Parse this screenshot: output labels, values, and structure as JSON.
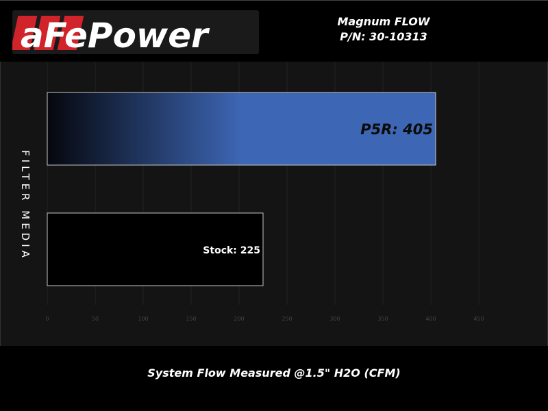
{
  "header": {
    "brand": "aFePower",
    "title_line1": "Magnum FLOW",
    "title_line2": "P/N: 30-10313"
  },
  "colors": {
    "logo_red": "#d1232a",
    "bar_blue": "#3d66b4",
    "background": "#141414"
  },
  "chart_data": {
    "type": "bar",
    "orientation": "horizontal",
    "categories": [
      "P5R",
      "Stock"
    ],
    "values": [
      405,
      225
    ],
    "data_labels": [
      "P5R: 405",
      "Stock: 225"
    ],
    "xlabel": "System Flow Measured @1.5\" H2O (CFM)",
    "ylabel": "FILTER MEDIA",
    "xlim": [
      0,
      475
    ],
    "xticks": [
      0,
      50,
      100,
      150,
      200,
      250,
      300,
      350,
      400,
      450
    ],
    "grid": true
  }
}
